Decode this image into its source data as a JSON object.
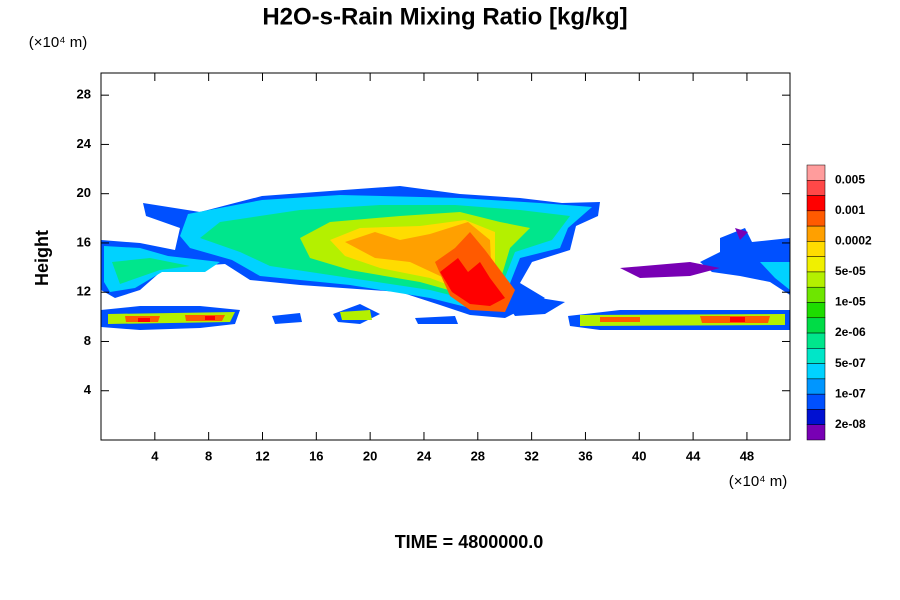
{
  "chart_data": {
    "type": "contour",
    "title": "H2O-s-Rain Mixing Ratio [kg/kg]",
    "y_unit": "(×10⁴ m)",
    "x_unit": "(×10⁴ m)",
    "y_label": "Height",
    "footer": "TIME = 4800000.0",
    "xlim": [
      0,
      51.2
    ],
    "xticks": [
      4,
      8,
      12,
      16,
      20,
      24,
      28,
      32,
      36,
      40,
      44,
      48
    ],
    "ylim": [
      0,
      29.8
    ],
    "yticks": [
      4,
      8,
      12,
      16,
      20,
      24,
      28
    ],
    "colorbar": {
      "colors": [
        "#ff9c9c",
        "#ff4848",
        "#ff0000",
        "#ff5a00",
        "#ffa000",
        "#ffdc00",
        "#f0f000",
        "#b4f000",
        "#6ee600",
        "#1edc00",
        "#00dc46",
        "#00e68c",
        "#00e6c8",
        "#00d2ff",
        "#0096ff",
        "#0050ff",
        "#0010d2",
        "#7800b4"
      ],
      "levels": [
        0.005,
        0.001,
        0.0002,
        {
          "value": 5e-05,
          "label": "5e-05"
        },
        {
          "value": 1e-05,
          "label": "1e-05"
        },
        {
          "value": 2e-06,
          "label": "2e-06"
        },
        {
          "value": 5e-07,
          "label": "5e-07"
        },
        {
          "value": 1e-07,
          "label": "1e-07"
        },
        {
          "value": 2e-08,
          "label": "2e-08"
        }
      ]
    }
  }
}
